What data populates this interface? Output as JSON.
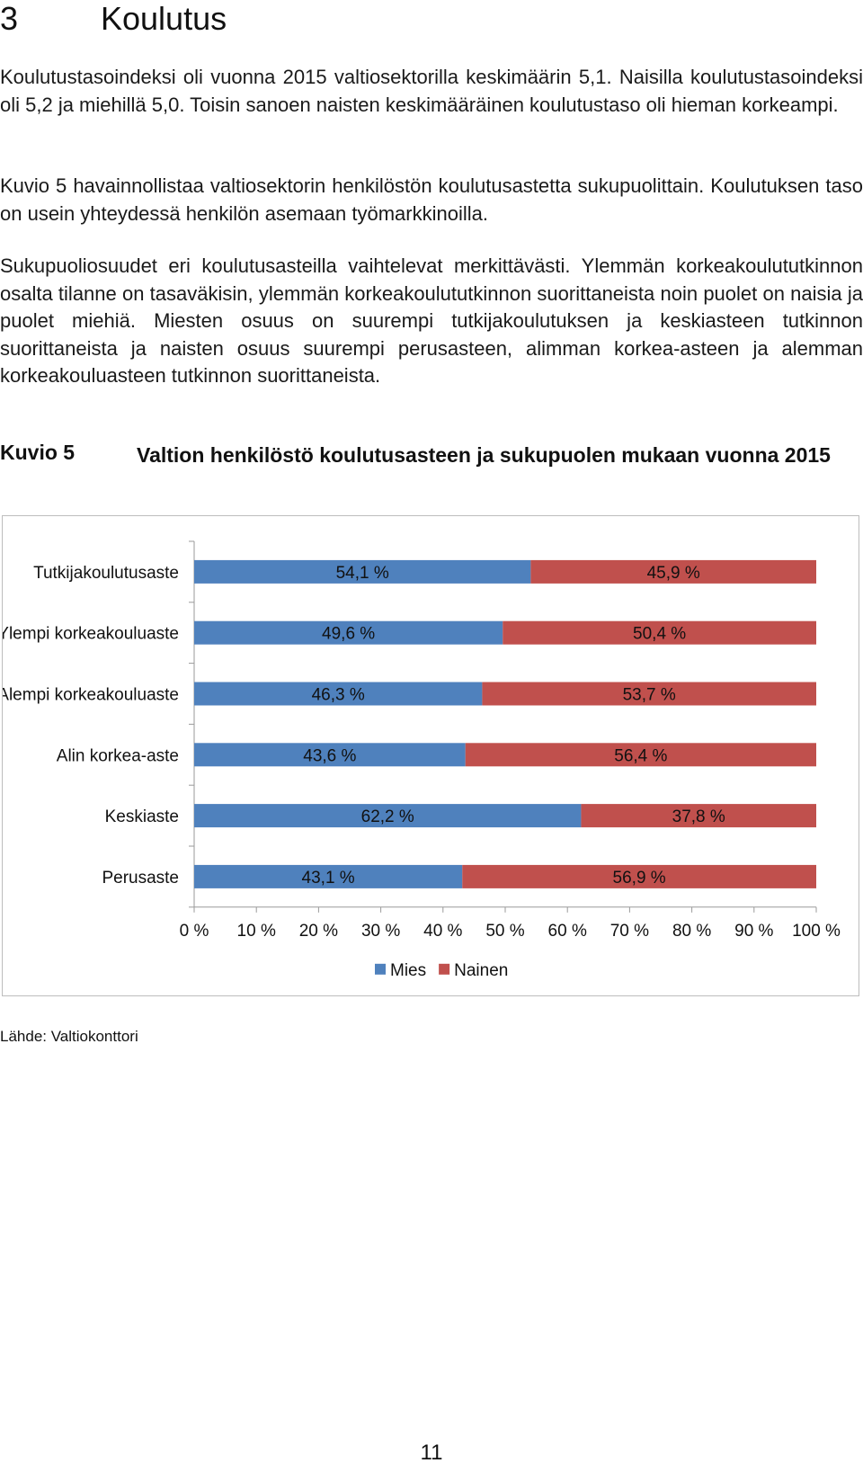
{
  "heading": {
    "number": "3",
    "title": "Koulutus"
  },
  "paragraphs": [
    "Koulutustasoindeksi oli vuonna 2015 valtiosektorilla keskimäärin 5,1. Naisilla koulutustasoindeksi oli 5,2 ja miehillä 5,0. Toisin sanoen naisten keskimääräinen koulutustaso oli hieman korkeampi.",
    "Kuvio 5 havainnollistaa valtiosektorin henkilöstön koulutusastetta sukupuolittain. Koulutuksen taso on usein yhteydessä henkilön asemaan työmarkkinoilla.",
    "Sukupuoliosuudet eri koulutusasteilla vaihtelevat merkittävästi. Ylemmän korkeakoulututkinnon osalta tilanne on tasaväkisin, ylemmän korkeakoulututkinnon suorittaneista noin puolet on naisia ja puolet miehiä. Miesten osuus on suurempi tutkijakoulutuksen ja keskiasteen tutkinnon suorittaneista ja naisten osuus suurempi perusasteen, alimman korkea-asteen ja alemman korkeakouluasteen tutkinnon suorittaneista."
  ],
  "figure": {
    "label": "Kuvio 5",
    "title": "Valtion henkilöstö koulutusasteen ja sukupuolen mukaan vuonna 2015"
  },
  "chart_data": {
    "type": "bar",
    "orientation": "horizontal",
    "stacked": true,
    "categories": [
      "Tutkijakoulutusaste",
      "Ylempi korkeakouluaste",
      "Alempi korkeakouluaste",
      "Alin korkea-aste",
      "Keskiaste",
      "Perusaste"
    ],
    "series": [
      {
        "name": "Mies",
        "color": "#4f81bd",
        "values": [
          54.1,
          49.6,
          46.3,
          43.6,
          62.2,
          43.1
        ],
        "labels": [
          "54,1 %",
          "49,6 %",
          "46,3 %",
          "43,6 %",
          "62,2 %",
          "43,1 %"
        ]
      },
      {
        "name": "Nainen",
        "color": "#c0504d",
        "values": [
          45.9,
          50.4,
          53.7,
          56.4,
          37.8,
          56.9
        ],
        "labels": [
          "45,9 %",
          "50,4 %",
          "53,7 %",
          "56,4 %",
          "37,8 %",
          "56,9 %"
        ]
      }
    ],
    "xlim": [
      0,
      100
    ],
    "x_ticks": [
      "0 %",
      "10 %",
      "20 %",
      "30 %",
      "40 %",
      "50 %",
      "60 %",
      "70 %",
      "80 %",
      "90 %",
      "100 %"
    ],
    "legend_position": "bottom",
    "grid": false
  },
  "source": "Lähde: Valtiokonttori",
  "page_number": "11"
}
